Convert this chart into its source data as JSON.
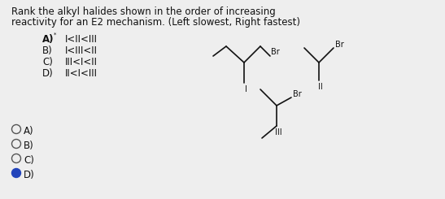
{
  "title_line1": "Rank the alkyl halides shown in the order of increasing",
  "title_line2": "reactivity for an E2 mechanism. (Left slowest, Right fastest)",
  "options": [
    {
      "label": "A)",
      "order": "I<II<III"
    },
    {
      "label": "B)",
      "order": "I<III<II"
    },
    {
      "label": "C)",
      "order": "III<I<II"
    },
    {
      "label": "D)",
      "order": "II<I<III"
    }
  ],
  "answer_options": [
    "A)",
    "B)",
    "C)",
    "D)"
  ],
  "selected": "D)",
  "bg_color": "#eeeeee",
  "text_color": "#111111",
  "molecule_color": "#111111",
  "radio_fill_color": "#2244bb",
  "radio_edge_color": "#555555",
  "title_fontsize": 8.5,
  "option_fontsize": 8.5,
  "answer_fontsize": 8.5,
  "mol_fontsize": 7.0,
  "mol_lw": 1.2
}
